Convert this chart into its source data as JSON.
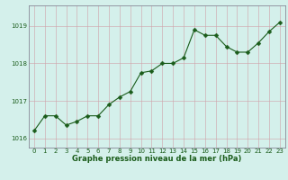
{
  "x": [
    0,
    1,
    2,
    3,
    4,
    5,
    6,
    7,
    8,
    9,
    10,
    11,
    12,
    13,
    14,
    15,
    16,
    17,
    18,
    19,
    20,
    21,
    22,
    23
  ],
  "y": [
    1016.2,
    1016.6,
    1016.6,
    1016.35,
    1016.45,
    1016.6,
    1016.6,
    1016.9,
    1017.1,
    1017.25,
    1017.75,
    1017.8,
    1018.0,
    1018.0,
    1018.15,
    1018.9,
    1018.75,
    1018.75,
    1018.45,
    1018.3,
    1018.3,
    1018.55,
    1018.85,
    1019.1
  ],
  "line_color": "#1a5c1a",
  "marker_color": "#1a5c1a",
  "bg_color": "#d4f0eb",
  "grid_color_v": "#d0a0a8",
  "grid_color_h": "#d0a0a8",
  "border_color": "#888898",
  "xlabel": "Graphe pression niveau de la mer (hPa)",
  "xlabel_color": "#1a5c1a",
  "tick_label_color": "#1a5c1a",
  "ylim": [
    1015.75,
    1019.55
  ],
  "yticks": [
    1016,
    1017,
    1018,
    1019
  ],
  "xticks": [
    0,
    1,
    2,
    3,
    4,
    5,
    6,
    7,
    8,
    9,
    10,
    11,
    12,
    13,
    14,
    15,
    16,
    17,
    18,
    19,
    20,
    21,
    22,
    23
  ],
  "marker_size": 2.5,
  "linewidth": 0.8,
  "tick_fontsize": 5.0,
  "xlabel_fontsize": 6.0
}
